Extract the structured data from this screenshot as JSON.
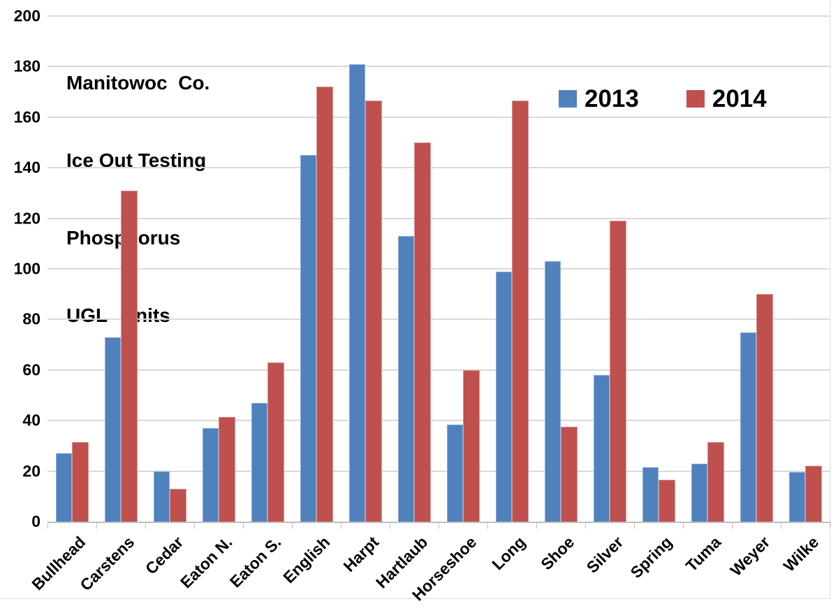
{
  "chart_data": {
    "type": "bar",
    "title_lines": [
      "Manitowoc  Co.",
      "Ice Out Testing",
      "Phosphorus",
      "UGL   units"
    ],
    "categories": [
      "Bullhead",
      "Carstens",
      "Cedar",
      "Eaton N.",
      "Eaton S.",
      "English",
      "Harpt",
      "Hartlaub",
      "Horseshoe",
      "Long",
      "Shoe",
      "Silver",
      "Spring",
      "Tuma",
      "Weyer",
      "Wilke"
    ],
    "series": [
      {
        "name": "2013",
        "color": "#4F81BD",
        "border_color": "#8FAED6",
        "values": [
          27,
          73,
          20,
          37,
          47,
          145,
          181,
          113,
          38.5,
          99,
          103,
          58,
          21.5,
          23,
          75,
          19.5
        ]
      },
      {
        "name": "2014",
        "color": "#C0504D",
        "border_color": "#D69795",
        "values": [
          31.5,
          131,
          13,
          41.5,
          63,
          172,
          166.5,
          150,
          60,
          166.5,
          37.5,
          119,
          16.5,
          31.5,
          90,
          22
        ]
      }
    ],
    "ylim": [
      0,
      200
    ],
    "ytick_step": 20,
    "yticks": [
      0,
      20,
      40,
      60,
      80,
      100,
      120,
      140,
      160,
      180,
      200
    ],
    "legend_position": "top-right",
    "grid": "horizontal",
    "gridline_color": "#D9D9D9",
    "axis_color": "#BFBFBF",
    "text_color": "#000000",
    "background": "#FFFFFF"
  }
}
